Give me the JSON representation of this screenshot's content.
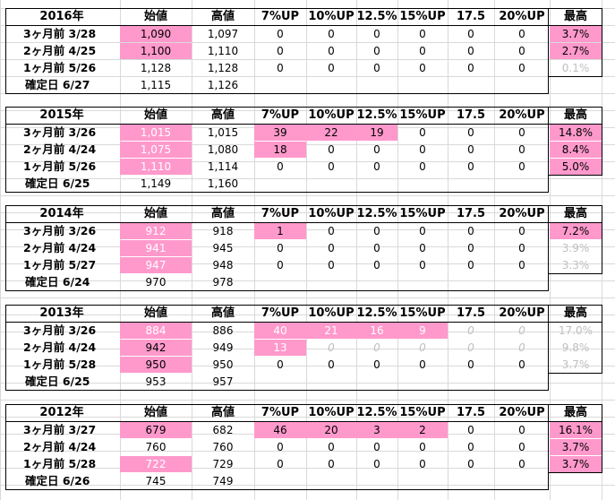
{
  "headers": [
    "始値",
    "高値",
    "7%UP",
    "10%UP",
    "12.5%",
    "15%UP",
    "17.5",
    "20%UP",
    "最高"
  ],
  "blocks": [
    {
      "year": "2016年",
      "rows": [
        {
          "label": "3ヶ月前 3/28",
          "open": "1,090",
          "high": "1,097",
          "u7": "0",
          "u10": "0",
          "u125": "0",
          "u15": "0",
          "u175": "0",
          "u20": "0",
          "max": "3.7%"
        },
        {
          "label": "2ヶ月前 4/25",
          "open": "1,100",
          "high": "1,110",
          "u7": "0",
          "u10": "0",
          "u125": "0",
          "u15": "0",
          "u175": "0",
          "u20": "0",
          "max": "2.7%"
        },
        {
          "label": "1ヶ月前 5/26",
          "open": "1,128",
          "high": "1,128",
          "u7": "0",
          "u10": "0",
          "u125": "0",
          "u15": "0",
          "u175": "0",
          "u20": "0",
          "max": "0.1%"
        },
        {
          "label": "確定日 6/27",
          "open": "1,115",
          "high": "1,126"
        }
      ]
    },
    {
      "year": "2015年",
      "rows": [
        {
          "label": "3ヶ月前 3/26",
          "open": "1,015",
          "high": "1,015",
          "u7": "39",
          "u10": "22",
          "u125": "19",
          "u15": "0",
          "u175": "0",
          "u20": "0",
          "max": "14.8%"
        },
        {
          "label": "2ヶ月前 4/24",
          "open": "1,075",
          "high": "1,080",
          "u7": "18",
          "u10": "0",
          "u125": "0",
          "u15": "0",
          "u175": "0",
          "u20": "0",
          "max": "8.4%"
        },
        {
          "label": "1ヶ月前 5/26",
          "open": "1,110",
          "high": "1,114",
          "u7": "0",
          "u10": "0",
          "u125": "0",
          "u15": "0",
          "u175": "0",
          "u20": "0",
          "max": "5.0%"
        },
        {
          "label": "確定日 6/25",
          "open": "1,149",
          "high": "1,160"
        }
      ]
    },
    {
      "year": "2014年",
      "rows": [
        {
          "label": "3ヶ月前 3/26",
          "open": "912",
          "high": "918",
          "u7": "1",
          "u10": "0",
          "u125": "0",
          "u15": "0",
          "u175": "0",
          "u20": "0",
          "max": "7.2%"
        },
        {
          "label": "2ヶ月前 4/24",
          "open": "941",
          "high": "945",
          "u7": "0",
          "u10": "0",
          "u125": "0",
          "u15": "0",
          "u175": "0",
          "u20": "0",
          "max": "3.9%"
        },
        {
          "label": "1ヶ月前 5/27",
          "open": "947",
          "high": "948",
          "u7": "0",
          "u10": "0",
          "u125": "0",
          "u15": "0",
          "u175": "0",
          "u20": "0",
          "max": "3.3%"
        },
        {
          "label": "確定日 6/24",
          "open": "970",
          "high": "978"
        }
      ]
    },
    {
      "year": "2013年",
      "rows": [
        {
          "label": "3ヶ月前 3/26",
          "open": "884",
          "high": "886",
          "u7": "40",
          "u10": "21",
          "u125": "16",
          "u15": "9",
          "u175": "0",
          "u20": "0",
          "max": "17.0%"
        },
        {
          "label": "2ヶ月前 4/24",
          "open": "942",
          "high": "949",
          "u7": "13",
          "u10": "0",
          "u125": "0",
          "u15": "0",
          "u175": "0",
          "u20": "0",
          "max": "9.8%"
        },
        {
          "label": "1ヶ月前 5/28",
          "open": "950",
          "high": "950",
          "u7": "0",
          "u10": "0",
          "u125": "0",
          "u15": "0",
          "u175": "0",
          "u20": "0",
          "max": "3.7%"
        },
        {
          "label": "確定日 6/25",
          "open": "953",
          "high": "957"
        }
      ]
    },
    {
      "year": "2012年",
      "rows": [
        {
          "label": "3ヶ月前 3/27",
          "open": "679",
          "high": "682",
          "u7": "46",
          "u10": "20",
          "u125": "3",
          "u15": "2",
          "u175": "0",
          "u20": "0",
          "max": "16.1%"
        },
        {
          "label": "2ヶ月前 4/24",
          "open": "760",
          "high": "760",
          "u7": "0",
          "u10": "0",
          "u125": "0",
          "u15": "0",
          "u175": "0",
          "u20": "0",
          "max": "3.7%"
        },
        {
          "label": "1ヶ月前 5/28",
          "open": "722",
          "high": "729",
          "u7": "0",
          "u10": "0",
          "u125": "0",
          "u15": "0",
          "u175": "0",
          "u20": "0",
          "max": "3.7%"
        },
        {
          "label": "確定日 6/26",
          "open": "745",
          "high": "749"
        }
      ]
    }
  ],
  "colors": {
    "pink": "#ff99cc",
    "gridline": "#d9d9d9",
    "grey_text": "#bfbfbf",
    "white_text": "#ffffff"
  }
}
